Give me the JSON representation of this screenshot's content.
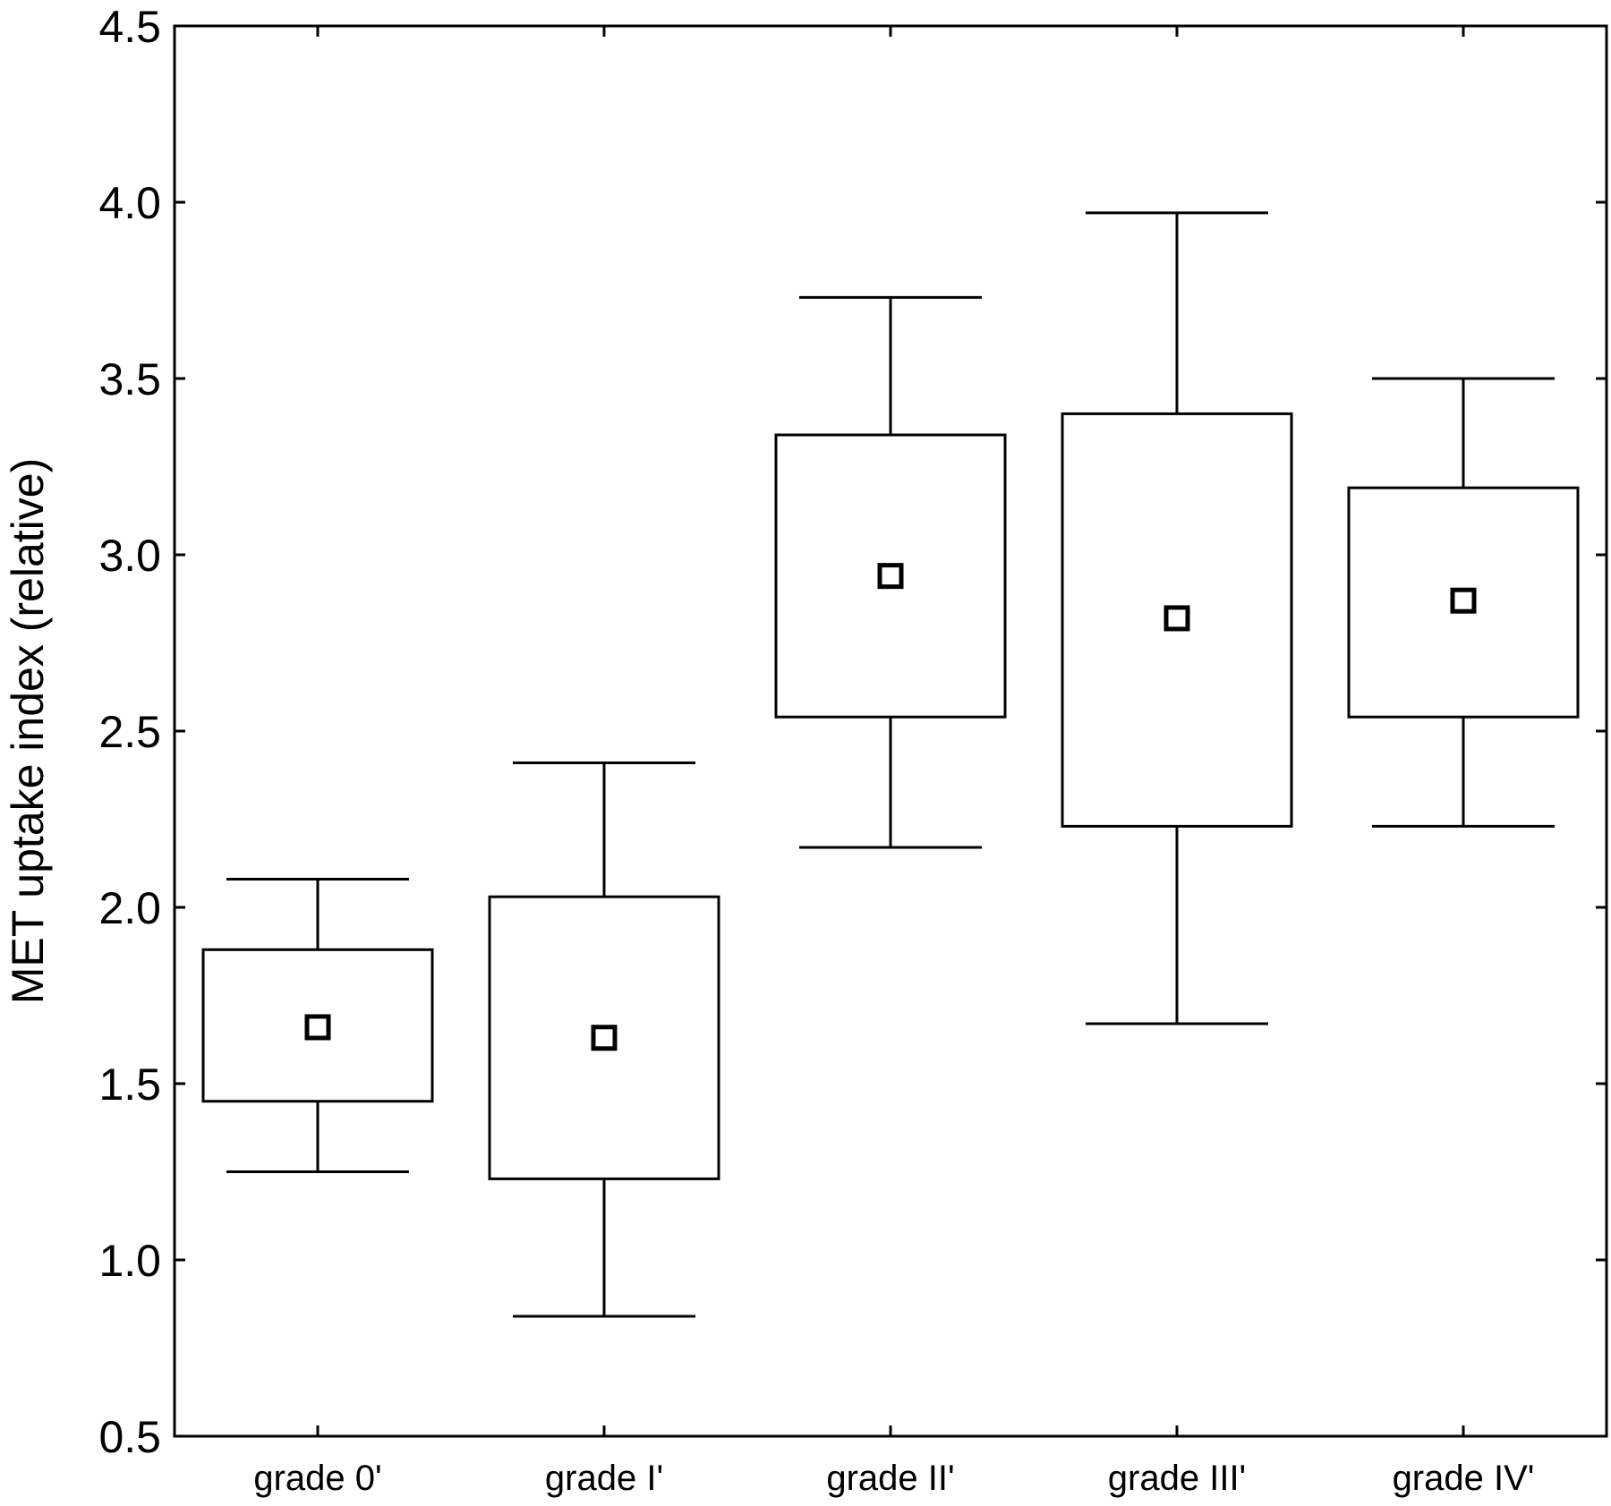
{
  "chart_data": {
    "type": "box",
    "title": "",
    "xlabel": "",
    "ylabel": "MET uptake index (relative)",
    "ylim": [
      0.5,
      4.5
    ],
    "yticks": [
      "0.5",
      "1.0",
      "1.5",
      "2.0",
      "2.5",
      "3.0",
      "3.5",
      "4.0",
      "4.5"
    ],
    "categories": [
      "grade 0'",
      "grade I'",
      "grade II'",
      "grade III'",
      "grade IV'"
    ],
    "series": [
      {
        "category": "grade 0'",
        "whisker_low": 1.25,
        "box_low": 1.45,
        "center": 1.66,
        "box_high": 1.88,
        "whisker_high": 2.08
      },
      {
        "category": "grade I'",
        "whisker_low": 0.84,
        "box_low": 1.23,
        "center": 1.63,
        "box_high": 2.03,
        "whisker_high": 2.41
      },
      {
        "category": "grade II'",
        "whisker_low": 2.17,
        "box_low": 2.54,
        "center": 2.94,
        "box_high": 3.34,
        "whisker_high": 3.73
      },
      {
        "category": "grade III'",
        "whisker_low": 1.67,
        "box_low": 2.23,
        "center": 2.82,
        "box_high": 3.4,
        "whisker_high": 3.97
      },
      {
        "category": "grade IV'",
        "whisker_low": 2.23,
        "box_low": 2.54,
        "center": 2.87,
        "box_high": 3.19,
        "whisker_high": 3.5
      }
    ],
    "grid": false,
    "legend": "none"
  }
}
